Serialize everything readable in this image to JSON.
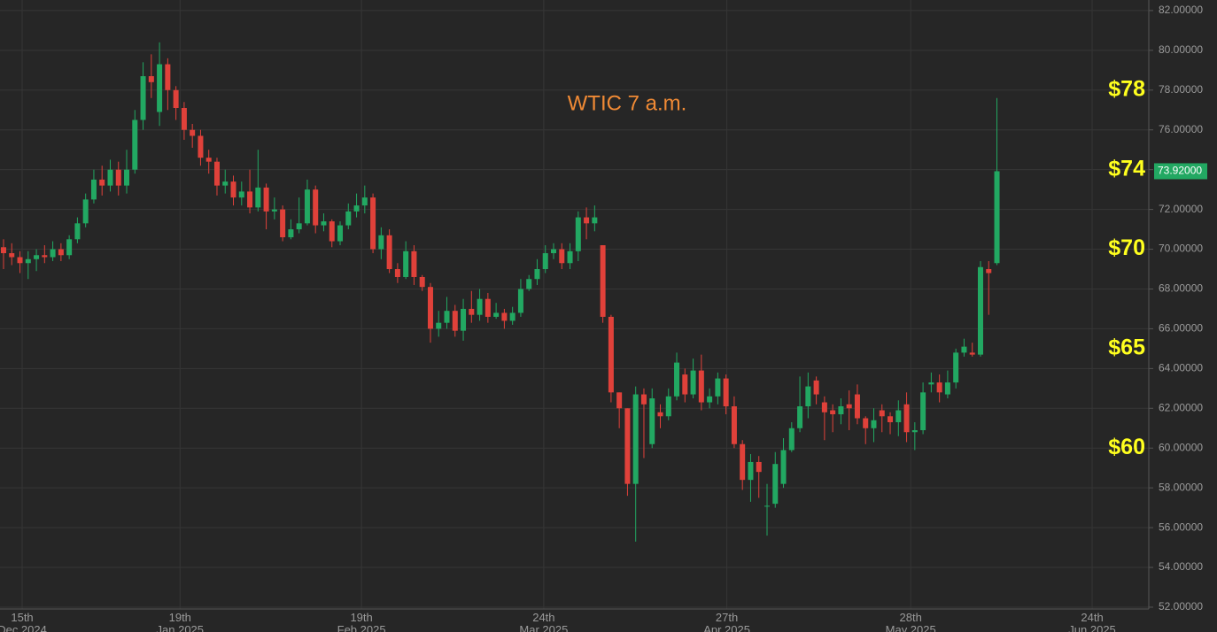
{
  "chart_data": {
    "type": "candlestick",
    "title": "WTIC  7 a.m.",
    "up_color": "#22a862",
    "down_color": "#e0413a",
    "grid": true,
    "xlim": [
      -0.43,
      139.5
    ],
    "ylim": [
      51.91,
      82.53
    ],
    "xticks": [
      {
        "value": 2.27,
        "label": "15th",
        "date": "Dec 2024"
      },
      {
        "value": 21.5,
        "label": "19th",
        "date": "Jan 2025"
      },
      {
        "value": 43.6,
        "label": "19th",
        "date": "Feb 2025"
      },
      {
        "value": 65.8,
        "label": "24th",
        "date": "Mar 2025"
      },
      {
        "value": 88.1,
        "label": "27th",
        "date": "Apr 2025"
      },
      {
        "value": 110.5,
        "label": "28th",
        "date": "May 2025"
      },
      {
        "value": 132.6,
        "label": "24th",
        "date": "Jun 2025"
      }
    ],
    "yticks": [
      {
        "value": 52,
        "label": "52.00000"
      },
      {
        "value": 54,
        "label": "54.00000"
      },
      {
        "value": 56,
        "label": "56.00000"
      },
      {
        "value": 58,
        "label": "58.00000"
      },
      {
        "value": 60,
        "label": "60.00000"
      },
      {
        "value": 62,
        "label": "62.00000"
      },
      {
        "value": 64,
        "label": "64.00000"
      },
      {
        "value": 66,
        "label": "66.00000"
      },
      {
        "value": 68,
        "label": "68.00000"
      },
      {
        "value": 70,
        "label": "70.00000"
      },
      {
        "value": 72,
        "label": "72.00000"
      },
      {
        "value": 74,
        "label": "74.00000"
      },
      {
        "value": 76,
        "label": "76.00000"
      },
      {
        "value": 78,
        "label": "78.00000"
      },
      {
        "value": 80,
        "label": "80.00000"
      },
      {
        "value": 82,
        "label": "82.00000"
      }
    ],
    "last_price": {
      "value": 73.92,
      "label": "73.92000"
    },
    "annotations": [
      {
        "text": "$78",
        "value": 78
      },
      {
        "text": "$74",
        "value": 74
      },
      {
        "text": "$70",
        "value": 70
      },
      {
        "text": "$65",
        "value": 65
      },
      {
        "text": "$60",
        "value": 60
      }
    ],
    "open": [
      70.1,
      69.8,
      69.6,
      69.3,
      69.5,
      69.7,
      69.6,
      70.0,
      69.7,
      70.5,
      71.3,
      72.5,
      73.5,
      73.2,
      74.0,
      73.2,
      74.0,
      76.5,
      78.7,
      76.9,
      79.3,
      78.0,
      77.1,
      76.0,
      75.7,
      74.6,
      74.4,
      73.2,
      73.4,
      72.6,
      72.9,
      72.1,
      73.1,
      71.9,
      72.0,
      70.6,
      71.0,
      71.3,
      73.0,
      71.2,
      71.4,
      70.4,
      71.2,
      71.9,
      72.2,
      72.6,
      70.0,
      70.7,
      69.0,
      68.6,
      69.9,
      68.6,
      68.1,
      66.0,
      66.3,
      66.9,
      65.9,
      67.0,
      66.7,
      67.5,
      66.6,
      66.8,
      66.4,
      66.8,
      68.0,
      68.5,
      69.0,
      69.8,
      70.0,
      69.3,
      69.9,
      71.6,
      71.3,
      70.2,
      66.6,
      62.8,
      62.0,
      58.2,
      62.7,
      60.2,
      61.8,
      61.6,
      62.6,
      63.7,
      62.7,
      63.9,
      62.3,
      62.6,
      63.5,
      62.1,
      60.2,
      58.4,
      59.3,
      57.1,
      57.2,
      58.2,
      59.9,
      61.0,
      62.1,
      63.4,
      62.3,
      61.9,
      61.7,
      62.2,
      62.7,
      61.5,
      61.0,
      61.9,
      61.6,
      61.3,
      62.2,
      60.8,
      60.9,
      63.2,
      63.3,
      62.7,
      63.3,
      64.8,
      64.8,
      64.7,
      69.0,
      69.3
    ],
    "high": [
      70.5,
      70.3,
      69.9,
      69.9,
      70.0,
      70.2,
      70.4,
      70.3,
      70.7,
      71.6,
      72.8,
      74.0,
      74.2,
      74.5,
      74.4,
      75.0,
      77.0,
      79.4,
      79.8,
      80.4,
      79.6,
      78.2,
      77.4,
      76.3,
      76.0,
      75.0,
      74.6,
      74.0,
      73.7,
      73.4,
      74.0,
      75.0,
      73.3,
      72.6,
      72.2,
      71.5,
      72.6,
      73.5,
      73.2,
      71.8,
      71.5,
      71.4,
      72.3,
      72.8,
      73.2,
      72.8,
      71.1,
      71.0,
      69.3,
      70.4,
      70.2,
      68.7,
      68.3,
      66.9,
      67.6,
      67.2,
      67.5,
      67.9,
      68.0,
      67.8,
      67.3,
      67.0,
      67.1,
      68.5,
      68.7,
      69.5,
      70.2,
      70.3,
      70.3,
      70.3,
      71.9,
      72.1,
      72.2,
      70.2,
      66.7,
      62.8,
      62.0,
      63.1,
      63.0,
      63.0,
      62.2,
      63.0,
      64.8,
      64.0,
      64.5,
      64.7,
      63.0,
      63.8,
      63.7,
      62.6,
      60.4,
      59.7,
      59.6,
      58.2,
      59.8,
      60.5,
      61.3,
      63.6,
      63.8,
      63.6,
      62.6,
      62.2,
      62.5,
      62.9,
      63.2,
      61.6,
      62.0,
      62.2,
      61.8,
      62.4,
      62.8,
      61.3,
      63.3,
      63.8,
      63.7,
      63.9,
      65.0,
      65.5,
      65.3,
      69.4,
      69.4,
      77.6
    ],
    "low": [
      69.0,
      69.2,
      68.8,
      68.5,
      68.9,
      69.3,
      69.4,
      69.4,
      69.5,
      70.3,
      71.1,
      72.3,
      72.7,
      72.9,
      72.7,
      72.8,
      73.8,
      76.0,
      77.6,
      76.2,
      77.0,
      76.5,
      75.5,
      75.1,
      74.2,
      73.8,
      72.7,
      72.8,
      72.2,
      72.2,
      71.8,
      71.9,
      71.0,
      71.5,
      70.4,
      70.5,
      70.8,
      71.2,
      70.8,
      70.9,
      70.1,
      70.2,
      71.0,
      71.6,
      71.8,
      69.8,
      69.5,
      68.8,
      68.3,
      68.5,
      68.2,
      67.9,
      65.3,
      65.6,
      66.0,
      65.6,
      65.4,
      66.3,
      66.4,
      66.3,
      66.5,
      66.0,
      66.2,
      66.6,
      67.9,
      68.2,
      68.8,
      69.5,
      69.0,
      69.0,
      69.4,
      70.5,
      70.9,
      66.3,
      62.3,
      61.0,
      57.6,
      55.3,
      59.5,
      60.0,
      61.0,
      61.4,
      62.4,
      62.3,
      62.5,
      61.9,
      62.0,
      62.2,
      61.7,
      60.0,
      57.9,
      57.3,
      57.5,
      55.6,
      57.0,
      58.0,
      59.8,
      60.8,
      61.5,
      62.2,
      60.4,
      60.8,
      61.2,
      60.9,
      61.2,
      60.2,
      60.3,
      60.8,
      60.7,
      60.6,
      60.3,
      59.9,
      60.7,
      62.8,
      62.3,
      62.5,
      63.0,
      64.6,
      64.6,
      64.6,
      66.7,
      69.2
    ],
    "close": [
      69.8,
      69.6,
      69.3,
      69.5,
      69.7,
      69.6,
      70.0,
      69.7,
      70.5,
      71.3,
      72.5,
      73.5,
      73.2,
      74.0,
      73.2,
      74.0,
      76.5,
      78.7,
      78.4,
      79.3,
      78.0,
      77.1,
      76.0,
      75.7,
      74.6,
      74.4,
      73.2,
      73.4,
      72.6,
      72.9,
      72.1,
      73.1,
      71.9,
      72.0,
      70.6,
      71.0,
      71.3,
      73.0,
      71.2,
      71.4,
      70.4,
      71.2,
      71.9,
      72.2,
      72.6,
      70.0,
      70.7,
      69.0,
      68.6,
      69.9,
      68.6,
      68.1,
      66.0,
      66.3,
      66.9,
      65.9,
      67.0,
      66.7,
      67.5,
      66.6,
      66.8,
      66.4,
      66.8,
      68.0,
      68.5,
      69.0,
      69.8,
      70.0,
      69.3,
      69.9,
      71.6,
      71.3,
      71.6,
      66.6,
      62.8,
      62.0,
      58.2,
      62.7,
      62.2,
      62.5,
      61.6,
      62.6,
      64.3,
      62.7,
      63.9,
      62.3,
      62.6,
      63.5,
      62.1,
      60.2,
      58.4,
      59.3,
      58.8,
      57.1,
      59.2,
      59.9,
      61.0,
      62.1,
      63.1,
      62.7,
      61.8,
      61.7,
      62.1,
      62.0,
      61.5,
      61.0,
      61.4,
      61.6,
      61.3,
      61.9,
      60.8,
      60.9,
      62.8,
      63.3,
      62.8,
      63.3,
      64.8,
      65.1,
      64.7,
      69.1,
      68.8,
      73.92
    ]
  }
}
